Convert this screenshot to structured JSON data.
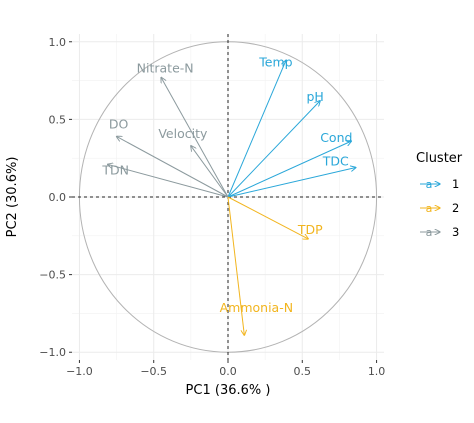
{
  "chart_data": {
    "type": "scatter",
    "subtype": "pca-correlation-circle",
    "title": "",
    "xlabel": "PC1 (36.6% )",
    "ylabel": "PC2 (30.6%)",
    "xlim": [
      -1.05,
      1.05
    ],
    "ylim": [
      -1.05,
      1.05
    ],
    "x_ticks": [
      -1.0,
      -0.5,
      0.0,
      0.5,
      1.0
    ],
    "y_ticks": [
      -1.0,
      -0.5,
      0.0,
      0.5,
      1.0
    ],
    "x_tick_labels": [
      "−1.0",
      "−0.5",
      "0.0",
      "0.5",
      "1.0"
    ],
    "y_tick_labels": [
      "−1.0",
      "−0.5",
      "0.0",
      "0.5",
      "1.0"
    ],
    "grid": true,
    "unit_circle": true,
    "legend": {
      "title": "Cluster",
      "position": "right",
      "glyph": "a",
      "entries": [
        {
          "label": "1",
          "color": "#2aa7d9"
        },
        {
          "label": "2",
          "color": "#f2b51f"
        },
        {
          "label": "3",
          "color": "#8c9a9e"
        }
      ]
    },
    "series": [
      {
        "name": "1",
        "color": "#2aa7d9",
        "points": [
          {
            "label": "Temp",
            "x": 0.39,
            "y": 0.88
          },
          {
            "label": "pH",
            "x": 0.62,
            "y": 0.62
          },
          {
            "label": "Cond",
            "x": 0.83,
            "y": 0.36
          },
          {
            "label": "TDC",
            "x": 0.86,
            "y": 0.19
          }
        ]
      },
      {
        "name": "2",
        "color": "#f2b51f",
        "points": [
          {
            "label": "TDP",
            "x": 0.54,
            "y": -0.27
          },
          {
            "label": "Ammonia-N",
            "x": 0.11,
            "y": -0.89
          }
        ]
      },
      {
        "name": "3",
        "color": "#8c9a9e",
        "points": [
          {
            "label": "Nitrate-N",
            "x": -0.45,
            "y": 0.77
          },
          {
            "label": "DO",
            "x": -0.75,
            "y": 0.39
          },
          {
            "label": "Velocity",
            "x": -0.25,
            "y": 0.33
          },
          {
            "label": "TDN",
            "x": -0.81,
            "y": 0.21
          }
        ]
      }
    ]
  }
}
